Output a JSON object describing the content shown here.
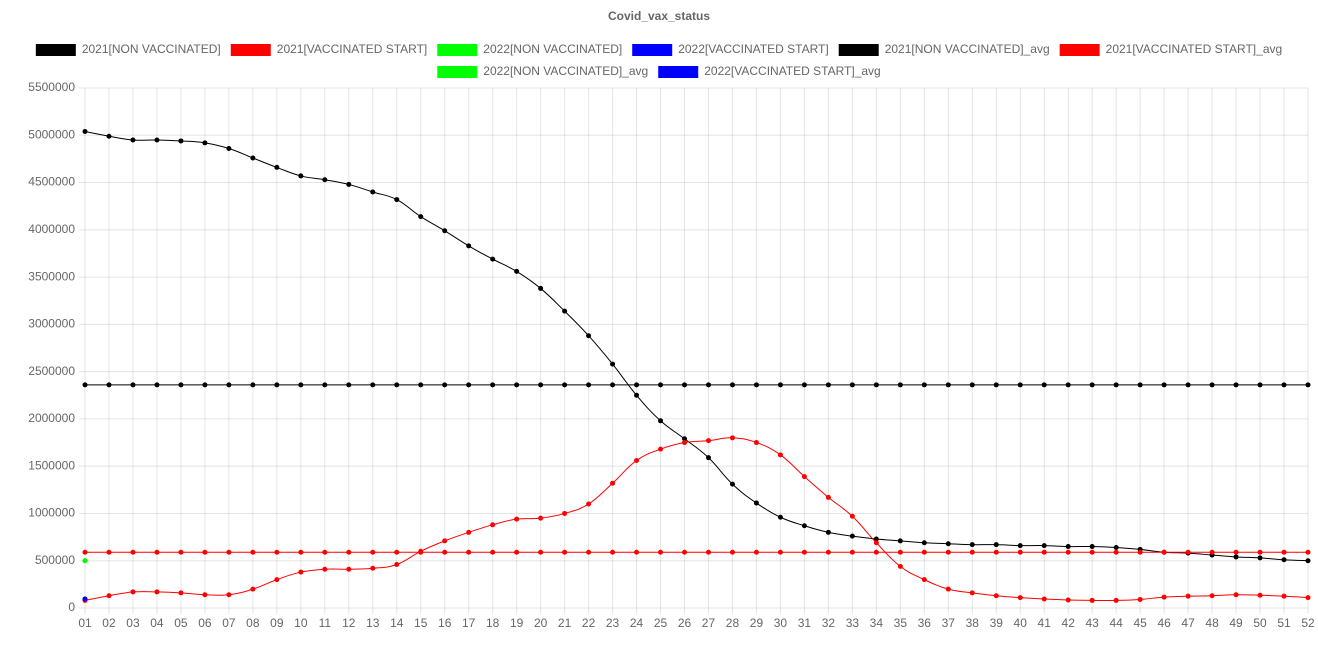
{
  "chart_data": {
    "type": "line",
    "title": "Covid_vax_status",
    "categories": [
      "01",
      "02",
      "03",
      "04",
      "05",
      "06",
      "07",
      "08",
      "09",
      "10",
      "11",
      "12",
      "13",
      "14",
      "15",
      "16",
      "17",
      "18",
      "19",
      "20",
      "21",
      "22",
      "23",
      "24",
      "25",
      "26",
      "27",
      "28",
      "29",
      "30",
      "31",
      "32",
      "33",
      "34",
      "35",
      "36",
      "37",
      "38",
      "39",
      "40",
      "41",
      "42",
      "43",
      "44",
      "45",
      "46",
      "47",
      "48",
      "49",
      "50",
      "51",
      "52"
    ],
    "ylim": [
      0,
      5500000
    ],
    "yticks": [
      0,
      500000,
      1000000,
      1500000,
      2000000,
      2500000,
      3000000,
      3500000,
      4000000,
      4500000,
      5000000,
      5500000
    ],
    "grid": true,
    "legend": "top",
    "series": [
      {
        "name": "2021[NON VACCINATED]",
        "color": "#000000",
        "values": [
          5040000,
          4990000,
          4950000,
          4950000,
          4940000,
          4920000,
          4860000,
          4760000,
          4660000,
          4570000,
          4530000,
          4480000,
          4400000,
          4320000,
          4140000,
          3990000,
          3830000,
          3690000,
          3560000,
          3380000,
          3140000,
          2880000,
          2580000,
          2250000,
          1980000,
          1790000,
          1590000,
          1310000,
          1110000,
          960000,
          870000,
          800000,
          760000,
          730000,
          710000,
          690000,
          680000,
          670000,
          670000,
          660000,
          660000,
          650000,
          650000,
          640000,
          620000,
          590000,
          580000,
          560000,
          540000,
          530000,
          510000,
          500000
        ]
      },
      {
        "name": "2021[VACCINATED START]",
        "color": "#ff0000",
        "values": [
          80000,
          130000,
          170000,
          170000,
          160000,
          140000,
          140000,
          200000,
          300000,
          380000,
          410000,
          410000,
          420000,
          460000,
          600000,
          710000,
          800000,
          880000,
          940000,
          950000,
          1000000,
          1100000,
          1320000,
          1560000,
          1680000,
          1750000,
          1770000,
          1800000,
          1750000,
          1620000,
          1390000,
          1170000,
          970000,
          690000,
          440000,
          300000,
          200000,
          160000,
          130000,
          110000,
          95000,
          85000,
          80000,
          80000,
          90000,
          115000,
          125000,
          130000,
          140000,
          135000,
          125000,
          110000
        ]
      },
      {
        "name": "2022[NON VACCINATED]",
        "color": "#00ff00",
        "values": [
          500000,
          null,
          null,
          null,
          null,
          null,
          null,
          null,
          null,
          null,
          null,
          null,
          null,
          null,
          null,
          null,
          null,
          null,
          null,
          null,
          null,
          null,
          null,
          null,
          null,
          null,
          null,
          null,
          null,
          null,
          null,
          null,
          null,
          null,
          null,
          null,
          null,
          null,
          null,
          null,
          null,
          null,
          null,
          null,
          null,
          null,
          null,
          null,
          null,
          null,
          null,
          null
        ]
      },
      {
        "name": "2022[VACCINATED START]",
        "color": "#0000ff",
        "values": [
          95000,
          null,
          null,
          null,
          null,
          null,
          null,
          null,
          null,
          null,
          null,
          null,
          null,
          null,
          null,
          null,
          null,
          null,
          null,
          null,
          null,
          null,
          null,
          null,
          null,
          null,
          null,
          null,
          null,
          null,
          null,
          null,
          null,
          null,
          null,
          null,
          null,
          null,
          null,
          null,
          null,
          null,
          null,
          null,
          null,
          null,
          null,
          null,
          null,
          null,
          null,
          null
        ]
      },
      {
        "name": "2021[NON VACCINATED]_avg",
        "color": "#000000",
        "values": [
          2360000,
          2360000,
          2360000,
          2360000,
          2360000,
          2360000,
          2360000,
          2360000,
          2360000,
          2360000,
          2360000,
          2360000,
          2360000,
          2360000,
          2360000,
          2360000,
          2360000,
          2360000,
          2360000,
          2360000,
          2360000,
          2360000,
          2360000,
          2360000,
          2360000,
          2360000,
          2360000,
          2360000,
          2360000,
          2360000,
          2360000,
          2360000,
          2360000,
          2360000,
          2360000,
          2360000,
          2360000,
          2360000,
          2360000,
          2360000,
          2360000,
          2360000,
          2360000,
          2360000,
          2360000,
          2360000,
          2360000,
          2360000,
          2360000,
          2360000,
          2360000,
          2360000
        ]
      },
      {
        "name": "2021[VACCINATED START]_avg",
        "color": "#ff0000",
        "values": [
          590000,
          590000,
          590000,
          590000,
          590000,
          590000,
          590000,
          590000,
          590000,
          590000,
          590000,
          590000,
          590000,
          590000,
          590000,
          590000,
          590000,
          590000,
          590000,
          590000,
          590000,
          590000,
          590000,
          590000,
          590000,
          590000,
          590000,
          590000,
          590000,
          590000,
          590000,
          590000,
          590000,
          590000,
          590000,
          590000,
          590000,
          590000,
          590000,
          590000,
          590000,
          590000,
          590000,
          590000,
          590000,
          590000,
          590000,
          590000,
          590000,
          590000,
          590000,
          590000
        ]
      },
      {
        "name": "2022[NON VACCINATED]_avg",
        "color": "#00ff00",
        "values": [
          500000,
          null,
          null,
          null,
          null,
          null,
          null,
          null,
          null,
          null,
          null,
          null,
          null,
          null,
          null,
          null,
          null,
          null,
          null,
          null,
          null,
          null,
          null,
          null,
          null,
          null,
          null,
          null,
          null,
          null,
          null,
          null,
          null,
          null,
          null,
          null,
          null,
          null,
          null,
          null,
          null,
          null,
          null,
          null,
          null,
          null,
          null,
          null,
          null,
          null,
          null,
          null
        ]
      },
      {
        "name": "2022[VACCINATED START]_avg",
        "color": "#0000ff",
        "values": [
          95000,
          null,
          null,
          null,
          null,
          null,
          null,
          null,
          null,
          null,
          null,
          null,
          null,
          null,
          null,
          null,
          null,
          null,
          null,
          null,
          null,
          null,
          null,
          null,
          null,
          null,
          null,
          null,
          null,
          null,
          null,
          null,
          null,
          null,
          null,
          null,
          null,
          null,
          null,
          null,
          null,
          null,
          null,
          null,
          null,
          null,
          null,
          null,
          null,
          null,
          null,
          null
        ]
      }
    ]
  }
}
